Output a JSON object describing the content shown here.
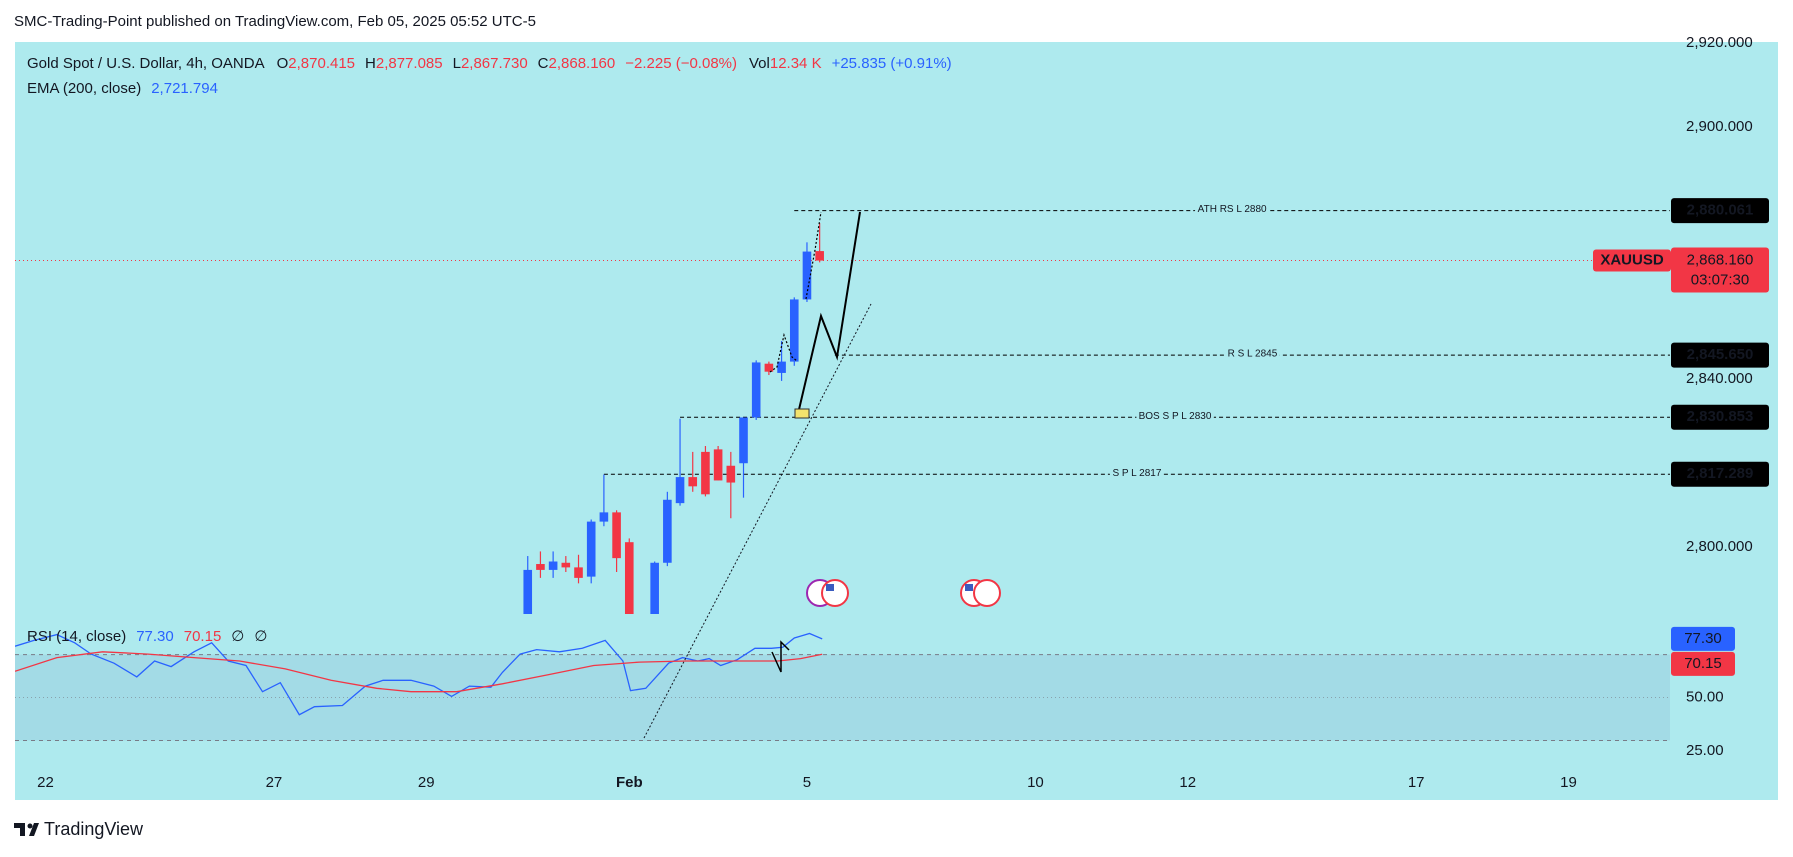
{
  "header": {
    "publisher": "SMC-Trading-Point published on TradingView.com, Feb 05, 2025 05:52 UTC-5"
  },
  "footer": {
    "brand": "TradingView"
  },
  "chart_data": [
    {
      "type": "candlestick",
      "symbol_title": "Gold Spot / U.S. Dollar, 4h, OANDA",
      "legend": {
        "open_label": "O",
        "open": "2,870.415",
        "high_label": "H",
        "high": "2,877.085",
        "low_label": "L",
        "low": "2,867.730",
        "close_label": "C",
        "close": "2,868.160",
        "change": "−2.225 (−0.08%)",
        "volume_label": "Vol",
        "volume": "12.34 K",
        "extra": "+25.835 (+0.91%)"
      },
      "indicator": {
        "name": "EMA (200, close)",
        "value": "2,721.794"
      },
      "x": [
        38,
        39,
        40,
        41,
        42,
        43,
        44,
        45,
        46,
        48,
        49,
        50,
        51,
        52,
        53,
        54,
        55,
        56,
        57,
        58,
        59,
        60,
        61
      ],
      "open": [
        2782.0,
        2795.9,
        2794.5,
        2796.2,
        2795.1,
        2792.9,
        2806.0,
        2808.2,
        2801.1,
        2780.0,
        2796.2,
        2810.4,
        2816.6,
        2822.6,
        2823.2,
        2819.3,
        2819.9,
        2830.8,
        2843.6,
        2841.4,
        2844.1,
        2858.9,
        2870.415
      ],
      "high": [
        2797.8,
        2798.9,
        2798.9,
        2797.8,
        2798.1,
        2806.5,
        2817.2,
        2808.7,
        2802.0,
        2796.5,
        2813.1,
        2830.5,
        2822.6,
        2824.0,
        2824.0,
        2822.6,
        2830.8,
        2844.4,
        2844.1,
        2849.0,
        2859.4,
        2872.5,
        2877.085
      ],
      "low": [
        2781.5,
        2792.6,
        2792.6,
        2794.0,
        2791.3,
        2791.3,
        2804.9,
        2794.0,
        2778.0,
        2778.0,
        2795.4,
        2809.8,
        2813.1,
        2812.0,
        2815.8,
        2806.8,
        2811.7,
        2830.2,
        2840.9,
        2839.5,
        2843.1,
        2858.3,
        2867.73
      ],
      "close": [
        2794.5,
        2794.5,
        2796.5,
        2795.1,
        2792.6,
        2806.0,
        2808.2,
        2797.3,
        2780.0,
        2796.2,
        2811.2,
        2816.6,
        2814.4,
        2812.5,
        2815.8,
        2815.3,
        2830.8,
        2843.9,
        2841.7,
        2844.1,
        2858.9,
        2870.3,
        2868.16
      ],
      "up_color": "#2962ff",
      "down_color": "#f23645",
      "xlim": [
        -2.4,
        128
      ],
      "xticks": [
        {
          "value": 0,
          "label": "22"
        },
        {
          "value": 18,
          "label": "27"
        },
        {
          "value": 30,
          "label": "29"
        },
        {
          "value": 46,
          "label": "Feb"
        },
        {
          "value": 60,
          "label": "5"
        },
        {
          "value": 78,
          "label": "10"
        },
        {
          "value": 90,
          "label": "12"
        },
        {
          "value": 108,
          "label": "17"
        },
        {
          "value": 120,
          "label": "19"
        }
      ],
      "ylim": [
        2784,
        2920.2
      ],
      "yticks": [
        {
          "value": 2920,
          "label": "2,920.000"
        },
        {
          "value": 2900,
          "label": "2,900.000"
        },
        {
          "value": 2840,
          "label": "2,840.000"
        },
        {
          "value": 2800,
          "label": "2,800.000"
        }
      ],
      "grid": false,
      "levels": [
        {
          "label": "ATH RS L 2880",
          "value": 2880.061,
          "value_label": "2,880.061",
          "start": 59
        },
        {
          "label": "R S L 2845",
          "value": 2845.65,
          "value_label": "2,845.650",
          "start": 62.2
        },
        {
          "label": "BOS S P L 2830",
          "value": 2830.853,
          "value_label": "2,830.853",
          "start": 50
        },
        {
          "label": "S P L 2817",
          "value": 2817.289,
          "value_label": "2,817.289",
          "start": 44
        }
      ],
      "price_line": {
        "symbol": "XAUUSD",
        "value": 2868.16,
        "label": "2,868.160",
        "countdown": "03:07:30",
        "color": "#f23645"
      }
    },
    {
      "type": "line",
      "title": "RSI (14, close)",
      "extra_labels": [
        "∅",
        "∅"
      ],
      "series": [
        {
          "color": "#2962ff",
          "last_label": "77.30",
          "x": [
            -2.4,
            -0.9,
            0.9,
            2.3,
            3.6,
            5.4,
            7.2,
            8.6,
            9.9,
            11.7,
            13.1,
            14.4,
            15.8,
            17.1,
            18.5,
            20.0,
            21.2,
            23.4,
            25.2,
            26.6,
            28.8,
            30.6,
            32.0,
            33.4,
            35.1,
            36.0,
            37.4,
            38.7,
            40.5,
            42.3,
            44.1,
            45.5,
            46.1,
            47.3,
            49.1,
            50.2,
            51.4,
            52.3,
            53.2,
            54.5,
            55.9,
            57.2,
            58.1,
            59.0,
            60.2,
            61.2
          ],
          "values": [
            73.9,
            76.6,
            79.3,
            75.5,
            70.2,
            66.0,
            59.6,
            67.0,
            64.4,
            71.3,
            75.5,
            67.0,
            64.9,
            52.7,
            56.9,
            42.0,
            45.7,
            46.3,
            55.3,
            58.0,
            58.0,
            55.3,
            50.5,
            55.3,
            54.8,
            61.7,
            70.2,
            72.3,
            71.3,
            72.9,
            76.6,
            67.0,
            53.2,
            54.3,
            66.0,
            68.6,
            67.0,
            68.1,
            64.9,
            67.6,
            72.9,
            72.9,
            73.4,
            77.7,
            79.8,
            77.3
          ]
        },
        {
          "color": "#f23645",
          "last_label": "70.15",
          "x": [
            -2.4,
            0.9,
            4.5,
            8.1,
            11.7,
            15.3,
            18.9,
            22.5,
            26.1,
            28.8,
            32.4,
            36.0,
            39.6,
            43.2,
            46.8,
            50.5,
            54.1,
            57.7,
            59.5,
            61.2
          ],
          "values": [
            62.2,
            68.6,
            71.3,
            70.2,
            68.6,
            67.0,
            63.3,
            58.0,
            54.3,
            52.7,
            52.7,
            56.4,
            60.6,
            64.9,
            66.5,
            67.0,
            67.0,
            67.0,
            68.1,
            70.15
          ]
        }
      ],
      "bands": [
        70,
        30
      ],
      "midline": 50,
      "xlim": [
        -2.4,
        128
      ],
      "ylim": [
        18.1,
        84.7
      ],
      "yticks": [
        {
          "value": 50,
          "label": "50.00"
        },
        {
          "value": 25,
          "label": "25.00"
        }
      ]
    }
  ]
}
